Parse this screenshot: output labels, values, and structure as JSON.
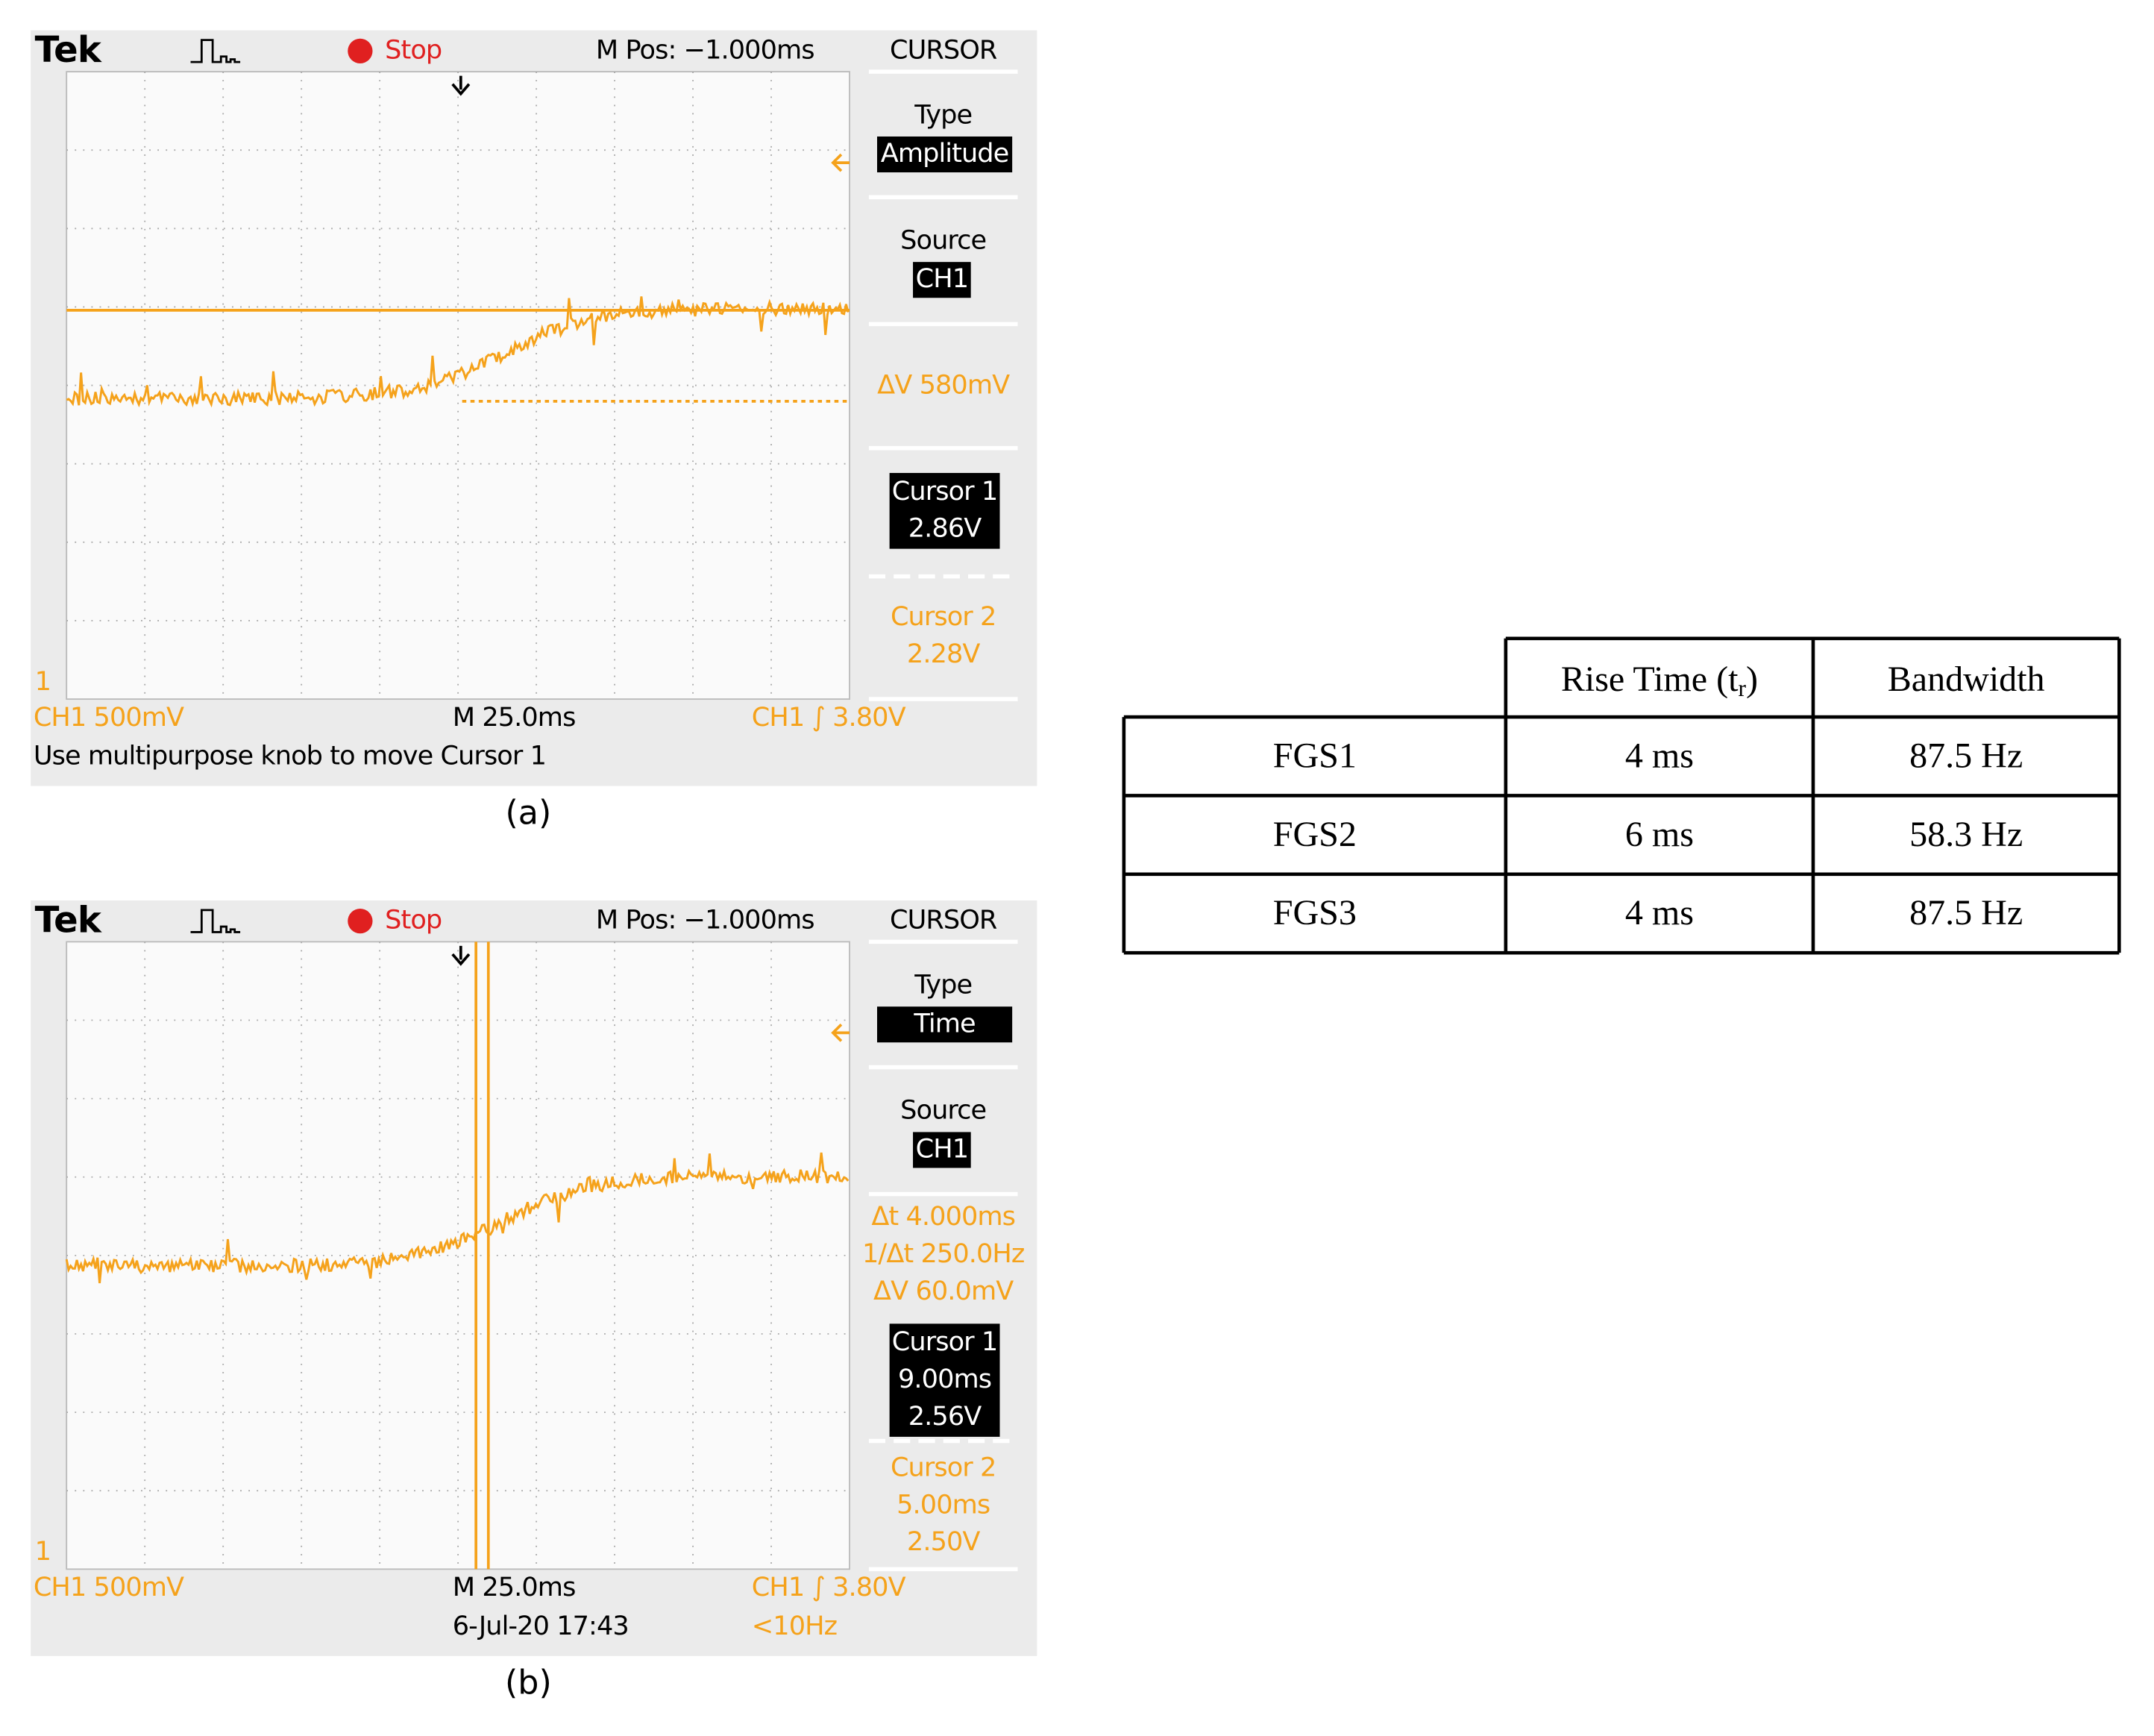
{
  "scopes": [
    {
      "brand": "Tek",
      "status": "Stop",
      "position": "M Pos: −1.000ms",
      "menu": "CURSOR",
      "type_label": "Type",
      "type_value": "Amplitude",
      "source_label": "Source",
      "source_value": "CH1",
      "readouts": [
        "ΔV 580mV"
      ],
      "cursor1": {
        "label": "Cursor 1",
        "values": [
          "2.86V"
        ]
      },
      "cursor2": {
        "label": "Cursor 2",
        "values": [
          "2.28V"
        ]
      },
      "channel_marker": "1",
      "channel_scale": "CH1  500mV",
      "timebase": "M 25.0ms",
      "trigger": "CH1 ∫ 3.80V",
      "message": "Use multipurpose knob to move Cursor 1",
      "caption": "(a)"
    },
    {
      "brand": "Tek",
      "status": "Stop",
      "position": "M Pos: −1.000ms",
      "menu": "CURSOR",
      "type_label": "Type",
      "type_value": "Time",
      "source_label": "Source",
      "source_value": "CH1",
      "readouts": [
        "Δt 4.000ms",
        "1/Δt 250.0Hz",
        "ΔV 60.0mV"
      ],
      "cursor1": {
        "label": "Cursor 1",
        "values": [
          "9.00ms",
          "2.56V"
        ]
      },
      "cursor2": {
        "label": "Cursor 2",
        "values": [
          "5.00ms",
          "2.50V"
        ]
      },
      "channel_marker": "1",
      "channel_scale": "CH1  500mV",
      "timebase": "M 25.0ms",
      "trigger": "CH1 ∫ 3.80V",
      "date": "6-Jul-20 17:43",
      "trigger_frequency": "<10Hz",
      "caption": "(b)"
    }
  ],
  "table": {
    "columns": [
      [
        "Rise Time (t",
        "r",
        ")"
      ],
      "Bandwidth"
    ],
    "rows": [
      [
        "FGS1",
        "4 ms",
        "87.5 Hz"
      ],
      [
        "FGS2",
        "6 ms",
        "58.3 Hz"
      ],
      [
        "FGS3",
        "4 ms",
        "87.5 Hz"
      ]
    ]
  }
}
